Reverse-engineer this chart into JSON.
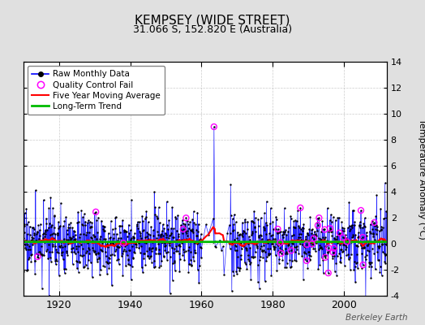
{
  "title": "KEMPSEY (WIDE STREET)",
  "subtitle": "31.066 S, 152.820 E (Australia)",
  "ylabel": "Temperature Anomaly (°C)",
  "watermark": "Berkeley Earth",
  "ylim": [
    -4,
    14
  ],
  "yticks": [
    -4,
    -2,
    0,
    2,
    4,
    6,
    8,
    10,
    12,
    14
  ],
  "year_start": 1910,
  "year_end": 2012,
  "bg_color": "#e0e0e0",
  "plot_bg_color": "#ffffff",
  "line_color": "#0000ff",
  "ma_color": "#ff0000",
  "trend_color": "#00bb00",
  "qc_color": "#ff00ff",
  "dot_color": "#000000",
  "legend_labels": [
    "Raw Monthly Data",
    "Quality Control Fail",
    "Five Year Moving Average",
    "Long-Term Trend"
  ]
}
